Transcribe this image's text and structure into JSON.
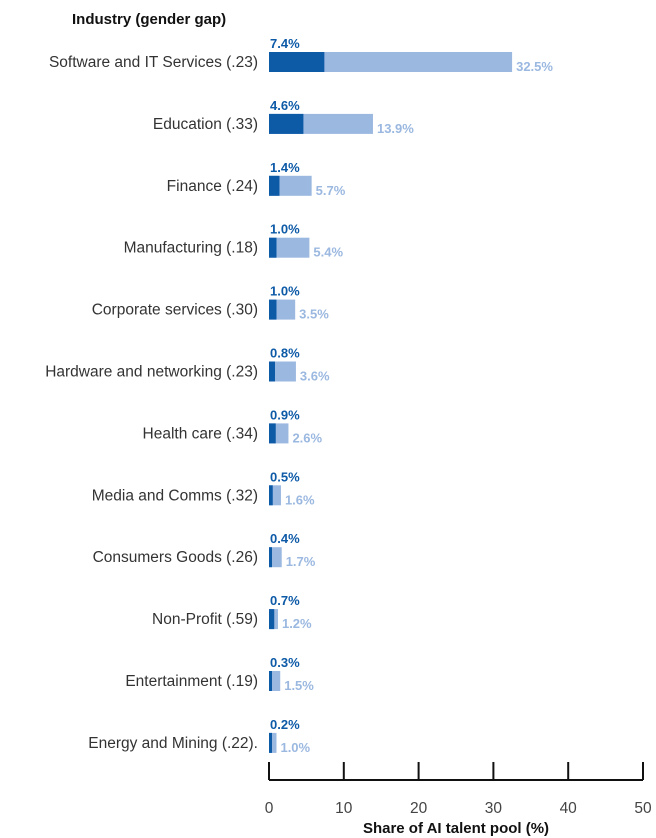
{
  "chart_data": {
    "type": "bar",
    "orientation": "horizontal",
    "stacked": "overlay",
    "category_header": "Industry (gender gap)",
    "xlabel": "Share of AI talent pool (%)",
    "xlim": [
      0,
      50
    ],
    "xticks": [
      0,
      10,
      20,
      30,
      40,
      50
    ],
    "categories": [
      "Software and  IT Services (.23)",
      "Education (.33)",
      "Finance (.24)",
      "Manufacturing (.18)",
      "Corporate services (.30)",
      "Hardware and networking (.23)",
      "Health care (.34)",
      "Media and Comms (.32)",
      "Consumers Goods (.26)",
      "Non-Profit (.59)",
      "Entertainment (.19)",
      "Energy and Mining (.22)."
    ],
    "series": [
      {
        "color": "#0d5aa7",
        "values": [
          7.4,
          4.6,
          1.4,
          1.0,
          1.0,
          0.8,
          0.9,
          0.5,
          0.4,
          0.7,
          0.3,
          0.2
        ],
        "labels": [
          "7.4%",
          "4.6%",
          "1.4%",
          "1.0%",
          "1.0%",
          "0.8%",
          "0.9%",
          "0.5%",
          "0.4%",
          "0.7%",
          "0.3%",
          "0.2%"
        ]
      },
      {
        "color": "#9bb8e0",
        "values": [
          32.5,
          13.9,
          5.7,
          5.4,
          3.5,
          3.6,
          2.6,
          1.6,
          1.7,
          1.2,
          1.5,
          1.0
        ],
        "labels": [
          "32.5%",
          "13.9%",
          "5.7%",
          "5.4%",
          "3.5%",
          "3.6%",
          "2.6%",
          "1.6%",
          "1.7%",
          "1.2%",
          "1.5%",
          "1.0%"
        ]
      }
    ],
    "grid": false,
    "legend": "none"
  }
}
